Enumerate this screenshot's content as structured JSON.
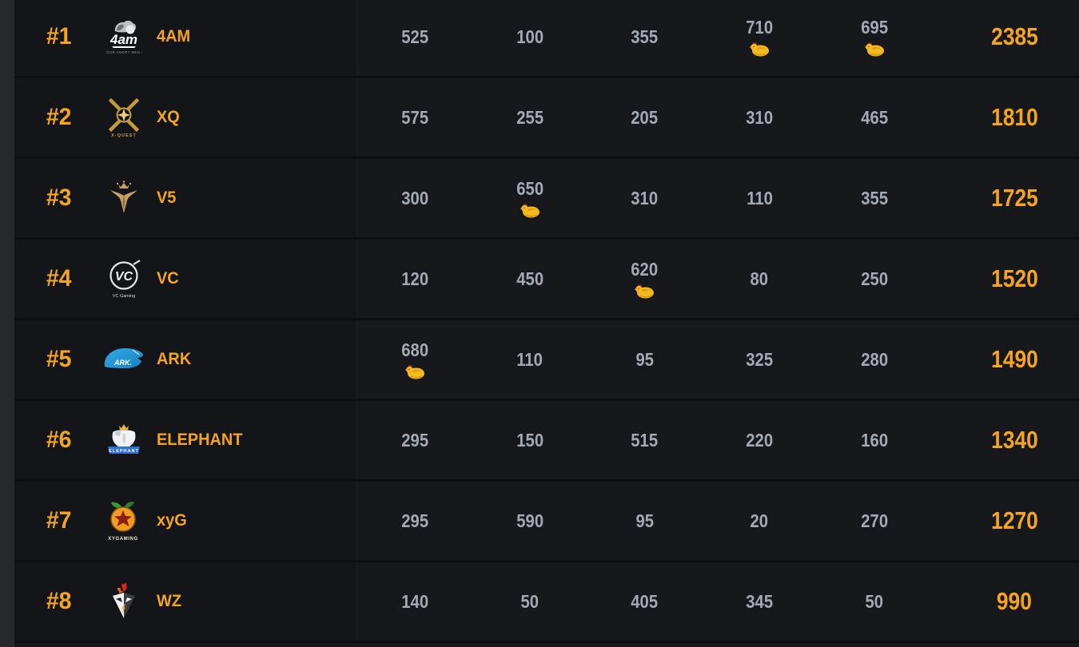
{
  "page": {
    "background": "#0d0e10",
    "row_background": "#17181c",
    "left_rail_color": "#27282c"
  },
  "colors": {
    "accent": "#f5a41f",
    "score_text": "#a4aab4",
    "chicken_gold": "#f5b91d",
    "chicken_comb_red": "#c22b15"
  },
  "icons": {
    "chicken": "chicken-dinner-icon"
  },
  "teams": [
    {
      "rank": "#1",
      "name": "4AM",
      "logo": {
        "id": "4am",
        "wordmark": "4am",
        "caption": "FOUR ANGRY MEN 4"
      },
      "scores": [
        {
          "value": "525",
          "chicken": false
        },
        {
          "value": "100",
          "chicken": false
        },
        {
          "value": "355",
          "chicken": false
        },
        {
          "value": "710",
          "chicken": true
        },
        {
          "value": "695",
          "chicken": true
        }
      ],
      "total": "2385"
    },
    {
      "rank": "#2",
      "name": "XQ",
      "logo": {
        "id": "xquest",
        "caption": "X-QUEST"
      },
      "scores": [
        {
          "value": "575",
          "chicken": false
        },
        {
          "value": "255",
          "chicken": false
        },
        {
          "value": "205",
          "chicken": false
        },
        {
          "value": "310",
          "chicken": false
        },
        {
          "value": "465",
          "chicken": false
        }
      ],
      "total": "1810"
    },
    {
      "rank": "#3",
      "name": "V5",
      "logo": {
        "id": "v5"
      },
      "scores": [
        {
          "value": "300",
          "chicken": false
        },
        {
          "value": "650",
          "chicken": true
        },
        {
          "value": "310",
          "chicken": false
        },
        {
          "value": "110",
          "chicken": false
        },
        {
          "value": "355",
          "chicken": false
        }
      ],
      "total": "1725"
    },
    {
      "rank": "#4",
      "name": "VC",
      "logo": {
        "id": "vc",
        "wordmark": "VC",
        "caption": "VC Gaming"
      },
      "scores": [
        {
          "value": "120",
          "chicken": false
        },
        {
          "value": "450",
          "chicken": false
        },
        {
          "value": "620",
          "chicken": true
        },
        {
          "value": "80",
          "chicken": false
        },
        {
          "value": "250",
          "chicken": false
        }
      ],
      "total": "1520"
    },
    {
      "rank": "#5",
      "name": "ARK",
      "logo": {
        "id": "ark",
        "wordmark": "ARK."
      },
      "scores": [
        {
          "value": "680",
          "chicken": true
        },
        {
          "value": "110",
          "chicken": false
        },
        {
          "value": "95",
          "chicken": false
        },
        {
          "value": "325",
          "chicken": false
        },
        {
          "value": "280",
          "chicken": false
        }
      ],
      "total": "1490"
    },
    {
      "rank": "#6",
      "name": "ELEPHANT",
      "logo": {
        "id": "elephant",
        "caption": "ELEPHANT"
      },
      "scores": [
        {
          "value": "295",
          "chicken": false
        },
        {
          "value": "150",
          "chicken": false
        },
        {
          "value": "515",
          "chicken": false
        },
        {
          "value": "220",
          "chicken": false
        },
        {
          "value": "160",
          "chicken": false
        }
      ],
      "total": "1340"
    },
    {
      "rank": "#7",
      "name": "xyG",
      "logo": {
        "id": "xyg",
        "caption": "XYGAMING"
      },
      "scores": [
        {
          "value": "295",
          "chicken": false
        },
        {
          "value": "590",
          "chicken": false
        },
        {
          "value": "95",
          "chicken": false
        },
        {
          "value": "20",
          "chicken": false
        },
        {
          "value": "270",
          "chicken": false
        }
      ],
      "total": "1270"
    },
    {
      "rank": "#8",
      "name": "WZ",
      "logo": {
        "id": "wz"
      },
      "scores": [
        {
          "value": "140",
          "chicken": false
        },
        {
          "value": "50",
          "chicken": false
        },
        {
          "value": "405",
          "chicken": false
        },
        {
          "value": "345",
          "chicken": false
        },
        {
          "value": "50",
          "chicken": false
        }
      ],
      "total": "990"
    }
  ]
}
